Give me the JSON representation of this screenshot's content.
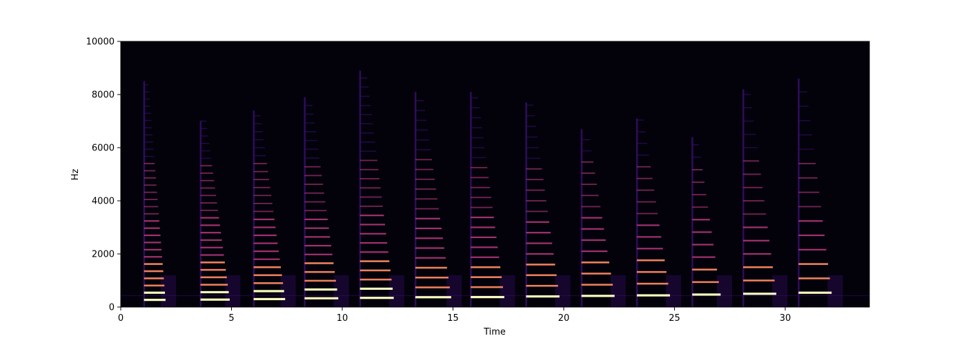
{
  "chart_data": {
    "type": "heatmap",
    "title": "",
    "xlabel": "Time",
    "ylabel": "Hz",
    "xlim": [
      0,
      33.8
    ],
    "ylim": [
      0,
      10000
    ],
    "x_ticks": [
      0,
      5,
      10,
      15,
      20,
      25,
      30
    ],
    "y_ticks": [
      0,
      2000,
      4000,
      6000,
      8000,
      10000
    ],
    "colormap": "magma",
    "colors": {
      "background": "#03020b",
      "low": "#3b0f70",
      "mid": "#b5367a",
      "high": "#fb8761",
      "peak": "#fcfdbf"
    },
    "hum_line_hz": 430,
    "notes": [
      {
        "onset": 1.05,
        "offset": 2.0,
        "f0": 270,
        "max_hz": 8500
      },
      {
        "onset": 3.6,
        "offset": 4.9,
        "f0": 280,
        "max_hz": 7000
      },
      {
        "onset": 6.0,
        "offset": 7.4,
        "f0": 300,
        "max_hz": 7400
      },
      {
        "onset": 8.3,
        "offset": 9.8,
        "f0": 330,
        "max_hz": 7900
      },
      {
        "onset": 10.8,
        "offset": 12.3,
        "f0": 345,
        "max_hz": 8900
      },
      {
        "onset": 13.3,
        "offset": 14.9,
        "f0": 370,
        "max_hz": 8100
      },
      {
        "onset": 15.8,
        "offset": 17.3,
        "f0": 375,
        "max_hz": 8100
      },
      {
        "onset": 18.3,
        "offset": 19.8,
        "f0": 400,
        "max_hz": 7700
      },
      {
        "onset": 20.8,
        "offset": 22.3,
        "f0": 420,
        "max_hz": 6700
      },
      {
        "onset": 23.3,
        "offset": 24.8,
        "f0": 440,
        "max_hz": 7100
      },
      {
        "onset": 25.8,
        "offset": 27.1,
        "f0": 470,
        "max_hz": 6400
      },
      {
        "onset": 28.1,
        "offset": 29.6,
        "f0": 500,
        "max_hz": 8200
      },
      {
        "onset": 30.6,
        "offset": 32.1,
        "f0": 540,
        "max_hz": 8600
      }
    ]
  }
}
